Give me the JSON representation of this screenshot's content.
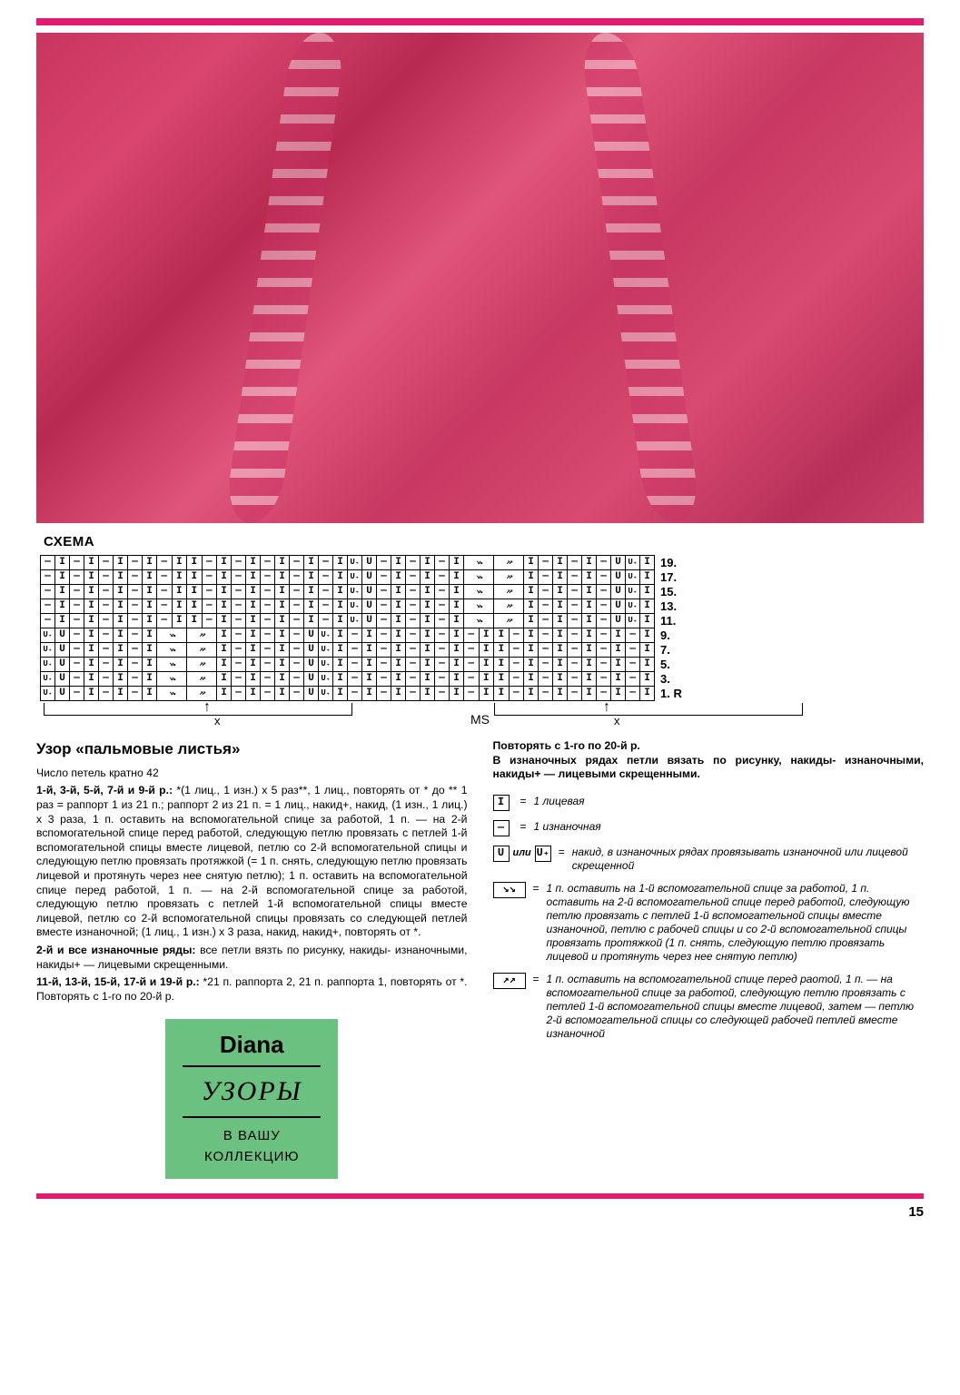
{
  "page_number": "15",
  "colors": {
    "accent_bar": "#e21b6f",
    "photo_base": "#c8355e",
    "diana_bg": "#6bc280"
  },
  "schema_label": "СХЕМА",
  "chart": {
    "row_labels": [
      "19.",
      "17.",
      "15.",
      "13.",
      "11.",
      "9.",
      "7.",
      "5.",
      "3.",
      "1. R"
    ],
    "cols": 42,
    "rows": [
      "p,k,p,k,p,k,p,k,p,k,k,p,k,p,k,p,k,p,k,p,k,up,u,p,k,p,k,p,k,cl,cl,cr,cr,k,p,k,p,k,p,u,up,k",
      "p,k,p,k,p,k,p,k,p,k,k,p,k,p,k,p,k,p,k,p,k,up,u,p,k,p,k,p,k,cl,cl,cr,cr,k,p,k,p,k,p,u,up,k",
      "p,k,p,k,p,k,p,k,p,k,k,p,k,p,k,p,k,p,k,p,k,up,u,p,k,p,k,p,k,cl,cl,cr,cr,k,p,k,p,k,p,u,up,k",
      "p,k,p,k,p,k,p,k,p,k,k,p,k,p,k,p,k,p,k,p,k,up,u,p,k,p,k,p,k,cl,cl,cr,cr,k,p,k,p,k,p,u,up,k",
      "p,k,p,k,p,k,p,k,p,k,k,p,k,p,k,p,k,p,k,p,k,up,u,p,k,p,k,p,k,cl,cl,cr,cr,k,p,k,p,k,p,u,up,k",
      "up,u,p,k,p,k,p,k,cl,cl,cr,cr,k,p,k,p,k,p,u,up,k,p,k,p,k,p,k,p,k,p,k,k,p,k,p,k,p,k,p,k,p,k",
      "up,u,p,k,p,k,p,k,cl,cl,cr,cr,k,p,k,p,k,p,u,up,k,p,k,p,k,p,k,p,k,p,k,k,p,k,p,k,p,k,p,k,p,k",
      "up,u,p,k,p,k,p,k,cl,cl,cr,cr,k,p,k,p,k,p,u,up,k,p,k,p,k,p,k,p,k,p,k,k,p,k,p,k,p,k,p,k,p,k",
      "up,u,p,k,p,k,p,k,cl,cl,cr,cr,k,p,k,p,k,p,u,up,k,p,k,p,k,p,k,p,k,p,k,k,p,k,p,k,p,k,p,k,p,k",
      "up,u,p,k,p,k,p,k,cl,cl,cr,cr,k,p,k,p,k,p,u,up,k,p,k,p,k,p,k,p,k,p,k,k,p,k,p,k,p,k,p,k,p,k"
    ],
    "foot": {
      "ms": "MS",
      "x": "x"
    }
  },
  "pattern_title": "Узор «пальмовые листья»",
  "left_paragraphs": [
    {
      "bold": "",
      "text": "Число петель кратно 42"
    },
    {
      "bold": "1-й, 3-й, 5-й, 7-й и 9-й р.:",
      "text": " *(1 лиц., 1 изн.) x 5 раз**, 1 лиц., повторять от * до ** 1 раз = раппорт 1 из 21 п.; раппорт 2 из 21 п. = 1 лиц., накид+, накид, (1 изн., 1 лиц.) x 3 раза, 1 п. оставить на вспомогательной спице за работой, 1 п. — на 2-й вспомогательной спице перед работой, следующую петлю провязать с петлей 1-й вспомогательной спицы вместе лицевой, петлю со 2-й вспомогательной спицы и следующую петлю провязать протяжкой (= 1 п. снять, следующую петлю провязать лицевой и протянуть через нее снятую петлю); 1 п. оставить на вспомогательной спице перед работой, 1 п. — на 2-й вспомогательной спице за работой, следующую петлю провязать с петлей 1-й вспомогательной спицы вместе лицевой, петлю со 2-й вспомогательной спицы провязать со следующей петлей вместе изнаночной; (1 лиц., 1 изн.) x 3 раза, накид, накид+, повторять от *."
    },
    {
      "bold": "2-й и все изнаночные ряды:",
      "text": " все петли вязть по рисунку, накиды- изнаночными, накиды+ — лицевыми скрещенными."
    },
    {
      "bold": "11-й, 13-й, 15-й, 17-й и 19-й р.:",
      "text": " *21 п. раппорта 2, 21 п. раппорта 1, повторять от *. Повторять с 1-го по 20-й р."
    }
  ],
  "right_intro": "Повторять с 1-го по 20-й р.\nВ изнаночных рядах петли вязать по рисунку, накиды- изнаночными, накиды+ — лицевыми скрещенными.",
  "legend": [
    {
      "sym": "I",
      "text": "1 лицевая"
    },
    {
      "sym": "—",
      "text": "1 изнаночная"
    },
    {
      "sym": "U или U₊",
      "text": "накид, в изнаночных рядах провязывать изнаночной или лицевой скрещенной"
    },
    {
      "sym": "↘↘",
      "wide": true,
      "text": "1 п. оставить на 1-й вспомогательной спице за работой, 1 п. оставить на 2-й вспомогательной спице перед работой, следующую петлю провязать с петлей 1-й вспомогательной спицы вместе изнаночной, петлю с рабочей спицы и со 2-й вспомогательной спицы провязать протяжкой (1 п. снять, следующую петлю провязать лицевой и протянуть через нее снятую петлю)"
    },
    {
      "sym": "↗↗",
      "wide": true,
      "text": "1 п. оставить на вспомогательной спице перед раотой, 1 п. — на вспомогательной спице за работой, следующую петлю провязать с петлей 1-й вспомогательной спицы вместе лицевой, затем — петлю 2-й вспомогательной спицы со следующей рабочей петлей вместе изнаночной"
    }
  ],
  "diana": {
    "brand": "Diana",
    "script": "УЗОРЫ",
    "line3": "В ВАШУ",
    "line4": "КОЛЛЕКЦИЮ"
  }
}
